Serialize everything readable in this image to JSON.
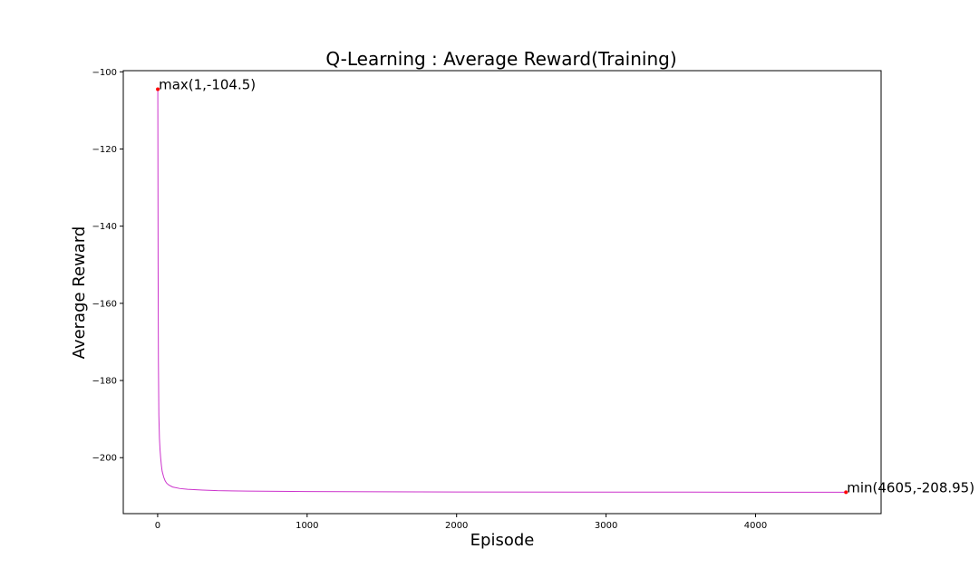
{
  "chart_data": {
    "type": "line",
    "title": "Q-Learning : Average Reward(Training)",
    "xlabel": "Episode",
    "ylabel": "Average Reward",
    "xlim": [
      -230,
      4840
    ],
    "ylim": [
      -214.5,
      -99.7
    ],
    "x_ticks": [
      0,
      1000,
      2000,
      3000,
      4000
    ],
    "x_tick_labels": [
      "0",
      "1000",
      "2000",
      "3000",
      "4000"
    ],
    "y_ticks": [
      -100,
      -120,
      -140,
      -160,
      -180,
      -200
    ],
    "y_tick_labels": [
      "−100",
      "−120",
      "−140",
      "−160",
      "−180",
      "−200"
    ],
    "grid": false,
    "line_color": "#cc33cc",
    "marker_color": "#ff0000",
    "series": [
      {
        "x": [
          1,
          3,
          5,
          8,
          12,
          16,
          20,
          25,
          30,
          40,
          50,
          60,
          75,
          100,
          150,
          200,
          300,
          400,
          600,
          800,
          1000,
          1500,
          2000,
          3000,
          4000,
          4605
        ],
        "values": [
          -104.5,
          -150,
          -175,
          -189,
          -195,
          -198,
          -200,
          -202,
          -203.5,
          -205,
          -206,
          -206.6,
          -207.1,
          -207.6,
          -208.0,
          -208.2,
          -208.4,
          -208.55,
          -208.65,
          -208.72,
          -208.78,
          -208.85,
          -208.9,
          -208.93,
          -208.94,
          -208.95
        ]
      }
    ],
    "annotations": [
      {
        "text": "max(1,-104.5)",
        "x": 1,
        "y": -104.5
      },
      {
        "text": "min(4605,-208.95)",
        "x": 4605,
        "y": -208.95
      }
    ]
  }
}
